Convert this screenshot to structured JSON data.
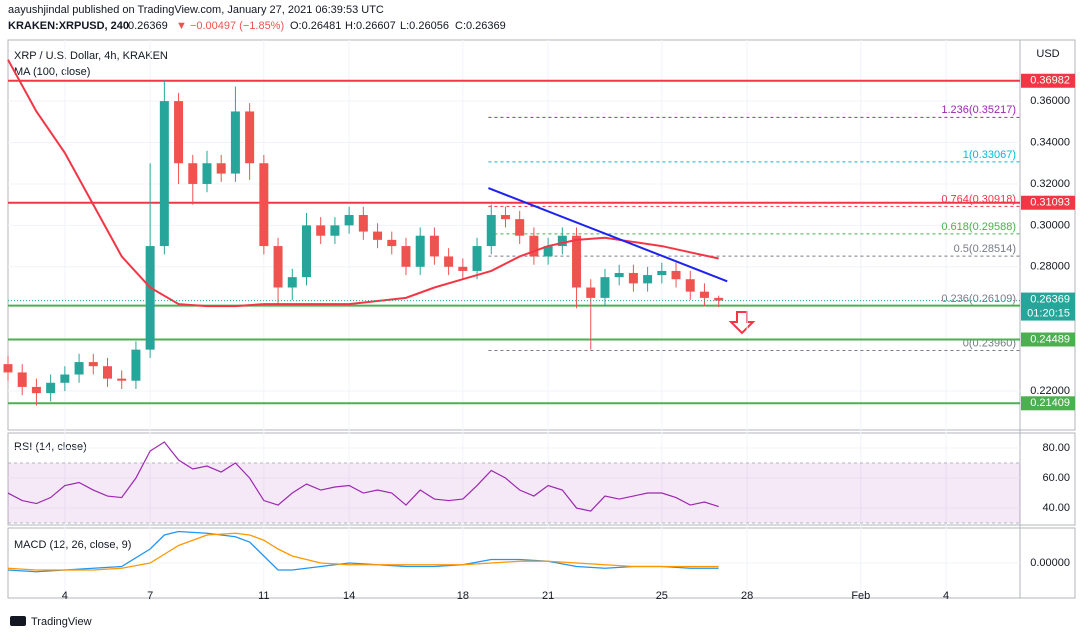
{
  "header": {
    "published": "aayushjindal published on TradingView.com, January 27, 2021 06:39:53 UTC",
    "symbol": "KRAKEN:XRPUSD, 240",
    "last": "0.26369",
    "change": "▼ −0.00497 (−1.85%)",
    "ohlc": [
      "O:0.26481",
      "H:0.26607",
      "L:0.26056",
      "C:0.26369"
    ]
  },
  "footer": {
    "brand": "TradingView"
  },
  "chart_data": {
    "type": "candlestick",
    "title": "XRP / U.S. Dollar, 4h, KRAKEN",
    "ma_label": "MA (100, close)",
    "currency": "USD",
    "xlim": [
      2,
      37.6
    ],
    "xticks": [
      4,
      7,
      11,
      14,
      18,
      21,
      25,
      28,
      {
        "value": 32,
        "label": "Feb"
      },
      {
        "value": 35,
        "label": "4"
      }
    ],
    "ylim": [
      0.2012,
      0.3895
    ],
    "yticks": [
      {
        "value": 0.22,
        "label": "0.22000"
      },
      {
        "value": 0.28,
        "label": "0.28000"
      },
      {
        "value": 0.3,
        "label": "0.30000"
      },
      {
        "value": 0.32,
        "label": "0.32000"
      },
      {
        "value": 0.34,
        "label": "0.34000"
      },
      {
        "value": 0.36,
        "label": "0.36000"
      }
    ],
    "up_color": "#26a69a",
    "down_color": "#ef5350",
    "x": [
      2,
      2.5,
      3,
      3.5,
      4,
      4.5,
      5,
      5.5,
      6,
      6.5,
      7,
      7.5,
      8,
      8.5,
      9,
      9.5,
      10,
      10.5,
      11,
      11.5,
      12,
      12.5,
      13,
      13.5,
      14,
      14.5,
      15,
      15.5,
      16,
      16.5,
      17,
      17.5,
      18,
      18.5,
      19,
      19.5,
      20,
      20.5,
      21,
      21.5,
      22,
      22.5,
      23,
      23.5,
      24,
      24.5,
      25,
      25.5,
      26,
      26.5,
      27
    ],
    "open": [
      0.233,
      0.229,
      0.222,
      0.219,
      0.224,
      0.228,
      0.234,
      0.232,
      0.226,
      0.225,
      0.24,
      0.29,
      0.36,
      0.33,
      0.32,
      0.33,
      0.325,
      0.355,
      0.33,
      0.29,
      0.27,
      0.275,
      0.3,
      0.295,
      0.3,
      0.305,
      0.297,
      0.293,
      0.29,
      0.28,
      0.295,
      0.285,
      0.28,
      0.278,
      0.29,
      0.305,
      0.303,
      0.295,
      0.285,
      0.29,
      0.295,
      0.27,
      0.265,
      0.275,
      0.277,
      0.272,
      0.276,
      0.278,
      0.274,
      0.268,
      0.265
    ],
    "high": [
      0.237,
      0.233,
      0.226,
      0.228,
      0.232,
      0.238,
      0.238,
      0.236,
      0.23,
      0.244,
      0.33,
      0.37,
      0.364,
      0.334,
      0.336,
      0.334,
      0.367,
      0.359,
      0.334,
      0.294,
      0.279,
      0.306,
      0.304,
      0.304,
      0.309,
      0.309,
      0.301,
      0.297,
      0.294,
      0.299,
      0.299,
      0.289,
      0.284,
      0.294,
      0.31,
      0.309,
      0.307,
      0.299,
      0.294,
      0.299,
      0.299,
      0.274,
      0.279,
      0.281,
      0.281,
      0.28,
      0.282,
      0.282,
      0.278,
      0.272,
      0.26607
    ],
    "low": [
      0.225,
      0.218,
      0.213,
      0.215,
      0.22,
      0.224,
      0.228,
      0.222,
      0.221,
      0.221,
      0.236,
      0.286,
      0.32,
      0.31,
      0.316,
      0.321,
      0.321,
      0.322,
      0.286,
      0.262,
      0.264,
      0.271,
      0.291,
      0.291,
      0.296,
      0.293,
      0.289,
      0.286,
      0.276,
      0.276,
      0.281,
      0.276,
      0.274,
      0.274,
      0.286,
      0.299,
      0.291,
      0.281,
      0.281,
      0.286,
      0.26,
      0.24,
      0.261,
      0.271,
      0.268,
      0.268,
      0.272,
      0.27,
      0.264,
      0.261,
      0.26056
    ],
    "close": [
      0.229,
      0.222,
      0.219,
      0.224,
      0.228,
      0.234,
      0.232,
      0.226,
      0.225,
      0.24,
      0.29,
      0.36,
      0.33,
      0.32,
      0.33,
      0.325,
      0.355,
      0.33,
      0.29,
      0.27,
      0.275,
      0.3,
      0.295,
      0.3,
      0.305,
      0.297,
      0.293,
      0.29,
      0.28,
      0.295,
      0.285,
      0.28,
      0.278,
      0.29,
      0.305,
      0.303,
      0.295,
      0.285,
      0.29,
      0.295,
      0.27,
      0.265,
      0.275,
      0.277,
      0.272,
      0.276,
      0.278,
      0.274,
      0.268,
      0.265,
      0.2637
    ],
    "ma": {
      "color": "#f23645",
      "x": [
        2,
        3,
        4,
        5,
        6,
        7,
        8,
        9,
        10,
        11,
        12,
        14,
        16,
        17,
        18,
        19,
        20,
        21,
        22,
        23,
        24,
        25,
        26,
        27
      ],
      "values": [
        0.38,
        0.355,
        0.335,
        0.31,
        0.285,
        0.27,
        0.262,
        0.261,
        0.261,
        0.262,
        0.262,
        0.262,
        0.265,
        0.27,
        0.274,
        0.278,
        0.285,
        0.29,
        0.293,
        0.294,
        0.292,
        0.29,
        0.287,
        0.284
      ]
    },
    "trendline": {
      "color": "#1e22f0",
      "x": [
        18.9,
        27.3
      ],
      "values": [
        0.318,
        0.273
      ]
    },
    "levels": [
      {
        "value": 0.36982,
        "color": "#f23645"
      },
      {
        "value": 0.31093,
        "color": "#f23645"
      },
      {
        "value": 0.26128,
        "color": "#4caf50"
      },
      {
        "value": 0.24489,
        "color": "#4caf50"
      },
      {
        "value": 0.21409,
        "color": "#4caf50"
      }
    ],
    "last_price": {
      "value": 0.26369,
      "color": "#26a69a",
      "countdown": "01:20:15"
    },
    "fib": {
      "start": 18.9,
      "values": [
        0.35217,
        0.33067,
        0.30918,
        0.29588,
        0.28514,
        0.26109,
        0.2396
      ],
      "value_labels": [
        "1.236(0.35217)",
        "1(0.33067)",
        "0.764(0.30918)",
        "0.618(0.29588)",
        "0.5(0.28514)",
        "0.236(0.26109)",
        "0(0.23960)"
      ],
      "colors": [
        "#9c27b0",
        "#00bcd4",
        "#f23645",
        "#4caf50",
        "#787b86",
        "#787b86",
        "#787b86"
      ]
    },
    "rsi": {
      "title": "RSI (14, close)",
      "color": "#9c27b0",
      "ylim": [
        28.7,
        90
      ],
      "yticks": [
        {
          "value": 80,
          "label": "80.00"
        },
        {
          "value": 60,
          "label": "60.00"
        },
        {
          "value": 40,
          "label": "40.00"
        }
      ],
      "band": [
        30,
        70
      ],
      "x": [
        2,
        2.5,
        3,
        3.5,
        4,
        4.5,
        5,
        5.5,
        6,
        6.5,
        7,
        7.5,
        8,
        8.5,
        9,
        9.5,
        10,
        10.5,
        11,
        11.5,
        12,
        12.5,
        13,
        13.5,
        14,
        14.5,
        15,
        15.5,
        16,
        16.5,
        17,
        17.5,
        18,
        18.5,
        19,
        19.5,
        20,
        20.5,
        21,
        21.5,
        22,
        22.5,
        23,
        23.5,
        24,
        24.5,
        25,
        25.5,
        26,
        26.5,
        27
      ],
      "values": [
        50,
        45,
        43,
        47,
        55,
        57,
        52,
        48,
        47,
        60,
        78,
        84,
        72,
        66,
        68,
        64,
        70,
        60,
        45,
        42,
        50,
        56,
        52,
        54,
        55,
        50,
        52,
        50,
        42,
        52,
        46,
        45,
        46,
        55,
        65,
        60,
        52,
        48,
        55,
        52,
        40,
        38,
        48,
        46,
        48,
        50,
        50,
        47,
        42,
        44,
        41
      ]
    },
    "macd": {
      "title": "MACD (12, 26, close, 9)",
      "ylim": [
        -0.02,
        0.02
      ],
      "yticks": [
        {
          "value": 0,
          "label": "0.00000"
        }
      ],
      "x": [
        2,
        3,
        4,
        5,
        6,
        7,
        7.5,
        8,
        9,
        10,
        10.5,
        11,
        11.5,
        12,
        13,
        14,
        15,
        16,
        17,
        18,
        19,
        20,
        21,
        22,
        23,
        24,
        25,
        26,
        27
      ],
      "series": [
        {
          "color": "#2196f3",
          "values": [
            -0.004,
            -0.005,
            -0.004,
            -0.003,
            -0.002,
            0.008,
            0.016,
            0.018,
            0.017,
            0.015,
            0.012,
            0.004,
            -0.004,
            -0.004,
            -0.002,
            0,
            -0.001,
            -0.002,
            -0.002,
            -0.001,
            0.002,
            0.002,
            0.001,
            -0.002,
            -0.003,
            -0.002,
            -0.002,
            -0.003,
            -0.003
          ]
        },
        {
          "color": "#ff9800",
          "values": [
            -0.003,
            -0.004,
            -0.004,
            -0.004,
            -0.003,
            0,
            0.005,
            0.01,
            0.016,
            0.017,
            0.016,
            0.013,
            0.008,
            0.004,
            0,
            -0.001,
            -0.001,
            -0.001,
            -0.001,
            -0.001,
            0,
            0.001,
            0.001,
            0,
            -0.001,
            -0.002,
            -0.002,
            -0.002,
            -0.002
          ]
        }
      ]
    }
  }
}
